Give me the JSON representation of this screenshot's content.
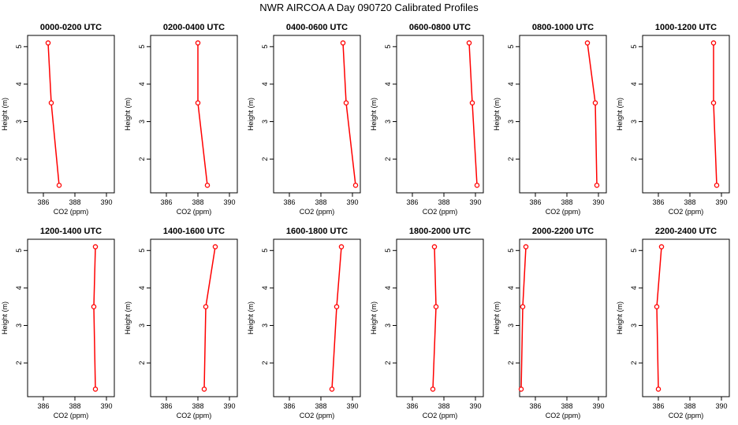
{
  "title": "NWR AIRCOA A  Day 090720  Calibrated Profiles",
  "colors": {
    "line": "#ff0000",
    "marker": "#ff0000",
    "axis": "#000000"
  },
  "chart_data": [
    {
      "type": "line",
      "title": "0000-0200 UTC",
      "xlabel": "CO2 (ppm)",
      "ylabel": "Height (m)",
      "xlim": [
        385,
        390.5
      ],
      "ylim": [
        1.1,
        5.3
      ],
      "xticks": [
        "386",
        "388",
        "390"
      ],
      "yticks": [
        "2",
        "3",
        "4",
        "5"
      ],
      "grid": false,
      "series": [
        {
          "x": [
            387.0,
            386.5,
            386.3
          ],
          "y": [
            1.3,
            3.5,
            5.1
          ]
        }
      ]
    },
    {
      "type": "line",
      "title": "0200-0400 UTC",
      "xlabel": "CO2 (ppm)",
      "ylabel": "Height (m)",
      "xlim": [
        385,
        390.5
      ],
      "ylim": [
        1.1,
        5.3
      ],
      "xticks": [
        "386",
        "388",
        "390"
      ],
      "yticks": [
        "2",
        "3",
        "4",
        "5"
      ],
      "grid": false,
      "series": [
        {
          "x": [
            388.6,
            388.0,
            388.0
          ],
          "y": [
            1.3,
            3.5,
            5.1
          ]
        }
      ]
    },
    {
      "type": "line",
      "title": "0400-0600 UTC",
      "xlabel": "CO2 (ppm)",
      "ylabel": "Height (m)",
      "xlim": [
        385,
        390.5
      ],
      "ylim": [
        1.1,
        5.3
      ],
      "xticks": [
        "386",
        "388",
        "390"
      ],
      "yticks": [
        "2",
        "3",
        "4",
        "5"
      ],
      "grid": false,
      "series": [
        {
          "x": [
            390.2,
            389.6,
            389.4
          ],
          "y": [
            1.3,
            3.5,
            5.1
          ]
        }
      ]
    },
    {
      "type": "line",
      "title": "0600-0800 UTC",
      "xlabel": "CO2 (ppm)",
      "ylabel": "Height (m)",
      "xlim": [
        385,
        390.5
      ],
      "ylim": [
        1.1,
        5.3
      ],
      "xticks": [
        "386",
        "388",
        "390"
      ],
      "yticks": [
        "2",
        "3",
        "4",
        "5"
      ],
      "grid": false,
      "series": [
        {
          "x": [
            390.1,
            389.8,
            389.6
          ],
          "y": [
            1.3,
            3.5,
            5.1
          ]
        }
      ]
    },
    {
      "type": "line",
      "title": "0800-1000 UTC",
      "xlabel": "CO2 (ppm)",
      "ylabel": "Height (m)",
      "xlim": [
        385,
        390.5
      ],
      "ylim": [
        1.1,
        5.3
      ],
      "xticks": [
        "386",
        "388",
        "390"
      ],
      "yticks": [
        "2",
        "3",
        "4",
        "5"
      ],
      "grid": false,
      "series": [
        {
          "x": [
            389.9,
            389.8,
            389.3
          ],
          "y": [
            1.3,
            3.5,
            5.1
          ]
        }
      ]
    },
    {
      "type": "line",
      "title": "1000-1200 UTC",
      "xlabel": "CO2 (ppm)",
      "ylabel": "Height (m)",
      "xlim": [
        385,
        390.5
      ],
      "ylim": [
        1.1,
        5.3
      ],
      "xticks": [
        "386",
        "388",
        "390"
      ],
      "yticks": [
        "2",
        "3",
        "4",
        "5"
      ],
      "grid": false,
      "series": [
        {
          "x": [
            389.7,
            389.5,
            389.5
          ],
          "y": [
            1.3,
            3.5,
            5.1
          ]
        }
      ]
    },
    {
      "type": "line",
      "title": "1200-1400 UTC",
      "xlabel": "CO2 (ppm)",
      "ylabel": "Height (m)",
      "xlim": [
        385,
        390.5
      ],
      "ylim": [
        1.1,
        5.3
      ],
      "xticks": [
        "386",
        "388",
        "390"
      ],
      "yticks": [
        "2",
        "3",
        "4",
        "5"
      ],
      "grid": false,
      "series": [
        {
          "x": [
            389.3,
            389.2,
            389.3
          ],
          "y": [
            1.3,
            3.5,
            5.1
          ]
        }
      ]
    },
    {
      "type": "line",
      "title": "1400-1600 UTC",
      "xlabel": "CO2 (ppm)",
      "ylabel": "Height (m)",
      "xlim": [
        385,
        390.5
      ],
      "ylim": [
        1.1,
        5.3
      ],
      "xticks": [
        "386",
        "388",
        "390"
      ],
      "yticks": [
        "2",
        "3",
        "4",
        "5"
      ],
      "grid": false,
      "series": [
        {
          "x": [
            388.4,
            388.5,
            389.1
          ],
          "y": [
            1.3,
            3.5,
            5.1
          ]
        }
      ]
    },
    {
      "type": "line",
      "title": "1600-1800 UTC",
      "xlabel": "CO2 (ppm)",
      "ylabel": "Height (m)",
      "xlim": [
        385,
        390.5
      ],
      "ylim": [
        1.1,
        5.3
      ],
      "xticks": [
        "386",
        "388",
        "390"
      ],
      "yticks": [
        "2",
        "3",
        "4",
        "5"
      ],
      "grid": false,
      "series": [
        {
          "x": [
            388.7,
            389.0,
            389.3
          ],
          "y": [
            1.3,
            3.5,
            5.1
          ]
        }
      ]
    },
    {
      "type": "line",
      "title": "1800-2000 UTC",
      "xlabel": "CO2 (ppm)",
      "ylabel": "Height (m)",
      "xlim": [
        385,
        390.5
      ],
      "ylim": [
        1.1,
        5.3
      ],
      "xticks": [
        "386",
        "388",
        "390"
      ],
      "yticks": [
        "2",
        "3",
        "4",
        "5"
      ],
      "grid": false,
      "series": [
        {
          "x": [
            387.3,
            387.5,
            387.4
          ],
          "y": [
            1.3,
            3.5,
            5.1
          ]
        }
      ]
    },
    {
      "type": "line",
      "title": "2000-2200 UTC",
      "xlabel": "CO2 (ppm)",
      "ylabel": "Height (m)",
      "xlim": [
        385,
        390.5
      ],
      "ylim": [
        1.1,
        5.3
      ],
      "xticks": [
        "386",
        "388",
        "390"
      ],
      "yticks": [
        "2",
        "3",
        "4",
        "5"
      ],
      "grid": false,
      "series": [
        {
          "x": [
            385.1,
            385.2,
            385.4
          ],
          "y": [
            1.3,
            3.5,
            5.1
          ]
        }
      ]
    },
    {
      "type": "line",
      "title": "2200-2400 UTC",
      "xlabel": "CO2 (ppm)",
      "ylabel": "Height (m)",
      "xlim": [
        385,
        390.5
      ],
      "ylim": [
        1.1,
        5.3
      ],
      "xticks": [
        "386",
        "388",
        "390"
      ],
      "yticks": [
        "2",
        "3",
        "4",
        "5"
      ],
      "grid": false,
      "series": [
        {
          "x": [
            386.0,
            385.9,
            386.2
          ],
          "y": [
            1.3,
            3.5,
            5.1
          ]
        }
      ]
    }
  ]
}
